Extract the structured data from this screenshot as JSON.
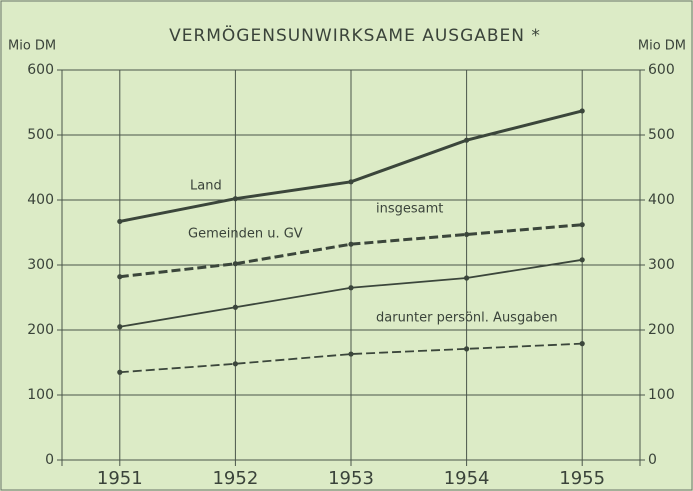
{
  "chart_data": {
    "type": "line",
    "title": "VERMÖGENSUNWIRKSAME AUSGABEN *",
    "y_label": "Mio DM",
    "y2_label": "Mio DM",
    "categories": [
      "1951",
      "1952",
      "1953",
      "1954",
      "1955"
    ],
    "series": [
      {
        "name": "Land",
        "color": "#3b463b",
        "style": "solid",
        "width": 3,
        "values": [
          367,
          402,
          428,
          492,
          537
        ]
      },
      {
        "name": "Gemeinden u. GV",
        "color": "#3b463b",
        "style": "dashed",
        "width": 3,
        "values": [
          282,
          302,
          332,
          347,
          362
        ]
      },
      {
        "color": "#3b463b",
        "style": "solid",
        "width": 1.8,
        "values": [
          205,
          235,
          265,
          280,
          308
        ]
      },
      {
        "color": "#3b463b",
        "style": "dashed",
        "width": 1.8,
        "values": [
          135,
          148,
          163,
          171,
          179
        ]
      }
    ],
    "annotations": [
      "insgesamt",
      "darunter persönl. Ausgaben"
    ],
    "ylim": [
      0,
      600
    ],
    "yticks": [
      0,
      100,
      200,
      300,
      400,
      500,
      600
    ],
    "y2lim": [
      0,
      600
    ],
    "y2ticks": [
      0,
      100,
      200,
      300,
      400,
      500,
      600
    ],
    "grid": true
  }
}
